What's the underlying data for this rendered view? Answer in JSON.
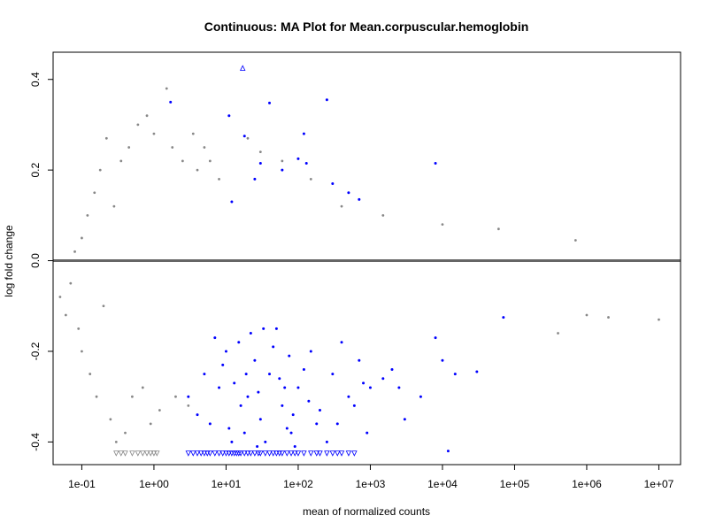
{
  "chart_data": {
    "type": "scatter",
    "title": "Continuous: MA Plot for Mean.corpuscular.hemoglobin",
    "xlabel": "mean of normalized counts",
    "ylabel": "log fold change",
    "x_scale": "log10",
    "xlim": [
      0.04,
      20000000
    ],
    "ylim": [
      -0.45,
      0.46
    ],
    "x_ticks": [
      {
        "value": 0.1,
        "label": "1e-01"
      },
      {
        "value": 1,
        "label": "1e+00"
      },
      {
        "value": 10,
        "label": "1e+01"
      },
      {
        "value": 100,
        "label": "1e+02"
      },
      {
        "value": 1000,
        "label": "1e+03"
      },
      {
        "value": 10000,
        "label": "1e+04"
      },
      {
        "value": 100000,
        "label": "1e+05"
      },
      {
        "value": 1000000,
        "label": "1e+06"
      },
      {
        "value": 10000000,
        "label": "1e+07"
      }
    ],
    "y_ticks": [
      {
        "value": -0.4,
        "label": "-0.4"
      },
      {
        "value": -0.2,
        "label": "-0.2"
      },
      {
        "value": 0.0,
        "label": "0.0"
      },
      {
        "value": 0.2,
        "label": "0.2"
      },
      {
        "value": 0.4,
        "label": "0.4"
      }
    ],
    "reference_line": {
      "y": 0,
      "color": "#666666"
    },
    "grid": false,
    "colors": {
      "not_significant": "#888888",
      "significant": "#0000ff"
    },
    "series": [
      {
        "points": [
          [
            0.05,
            -0.08
          ],
          [
            0.06,
            -0.12
          ],
          [
            0.07,
            -0.05
          ],
          [
            0.08,
            0.02
          ],
          [
            0.09,
            -0.15
          ],
          [
            0.1,
            0.05
          ],
          [
            0.1,
            -0.2
          ],
          [
            0.12,
            0.1
          ],
          [
            0.13,
            -0.25
          ],
          [
            0.15,
            0.15
          ],
          [
            0.16,
            -0.3
          ],
          [
            0.18,
            0.2
          ],
          [
            0.2,
            -0.1
          ],
          [
            0.22,
            0.27
          ],
          [
            0.25,
            -0.35
          ],
          [
            0.28,
            0.12
          ],
          [
            0.3,
            -0.4
          ],
          [
            0.35,
            0.22
          ],
          [
            0.4,
            -0.38
          ],
          [
            0.45,
            0.25
          ],
          [
            0.5,
            -0.3
          ],
          [
            0.6,
            0.3
          ],
          [
            0.7,
            -0.28
          ],
          [
            0.8,
            0.32
          ],
          [
            0.9,
            -0.36
          ],
          [
            1.0,
            0.28
          ],
          [
            1.2,
            -0.33
          ],
          [
            1.5,
            0.38
          ],
          [
            1.8,
            0.25
          ],
          [
            2.0,
            -0.3
          ],
          [
            2.5,
            0.22
          ],
          [
            3.0,
            -0.32
          ],
          [
            3.5,
            0.28
          ],
          [
            4.0,
            0.2
          ],
          [
            5.0,
            0.25
          ],
          [
            6.0,
            0.22
          ],
          [
            8.0,
            0.18
          ],
          [
            20,
            0.27
          ],
          [
            30,
            0.24
          ],
          [
            60,
            0.22
          ],
          [
            150,
            0.18
          ],
          [
            400,
            0.12
          ],
          [
            1500,
            0.1
          ],
          [
            10000,
            0.08
          ],
          [
            60000,
            0.07
          ],
          [
            700000,
            0.045
          ],
          [
            2000000,
            -0.125
          ],
          [
            1000000,
            -0.12
          ],
          [
            400000,
            -0.16
          ],
          [
            10000000,
            -0.13
          ]
        ]
      },
      {
        "name": "",
        "points": [
          [
            1.7,
            0.35
          ],
          [
            11,
            0.32
          ],
          [
            18,
            0.275
          ],
          [
            40,
            0.348
          ],
          [
            120,
            0.28
          ],
          [
            250,
            0.355
          ],
          [
            30,
            0.215
          ],
          [
            100,
            0.225
          ],
          [
            130,
            0.215
          ],
          [
            8000,
            0.215
          ],
          [
            12,
            0.13
          ],
          [
            25,
            0.18
          ],
          [
            60,
            0.2
          ],
          [
            300,
            0.17
          ],
          [
            500,
            0.15
          ],
          [
            700,
            0.135
          ],
          [
            3,
            -0.3
          ],
          [
            5,
            -0.25
          ],
          [
            8,
            -0.28
          ],
          [
            10,
            -0.2
          ],
          [
            15,
            -0.18
          ],
          [
            20,
            -0.3
          ],
          [
            25,
            -0.22
          ],
          [
            30,
            -0.35
          ],
          [
            40,
            -0.25
          ],
          [
            50,
            -0.15
          ],
          [
            60,
            -0.32
          ],
          [
            80,
            -0.38
          ],
          [
            100,
            -0.28
          ],
          [
            150,
            -0.2
          ],
          [
            200,
            -0.33
          ],
          [
            300,
            -0.25
          ],
          [
            400,
            -0.18
          ],
          [
            500,
            -0.3
          ],
          [
            700,
            -0.22
          ],
          [
            1000,
            -0.28
          ],
          [
            1500,
            -0.26
          ],
          [
            2000,
            -0.24
          ],
          [
            3000,
            -0.35
          ],
          [
            8000,
            -0.17
          ],
          [
            10000,
            -0.22
          ],
          [
            15000,
            -0.25
          ],
          [
            30000,
            -0.245
          ],
          [
            70000,
            -0.125
          ],
          [
            12000,
            -0.42
          ],
          [
            18,
            -0.38
          ],
          [
            12,
            -0.4
          ],
          [
            6,
            -0.36
          ],
          [
            35,
            -0.4
          ],
          [
            70,
            -0.37
          ],
          [
            90,
            -0.41
          ],
          [
            180,
            -0.36
          ],
          [
            7,
            -0.17
          ],
          [
            9,
            -0.23
          ],
          [
            13,
            -0.27
          ],
          [
            22,
            -0.16
          ],
          [
            45,
            -0.19
          ],
          [
            55,
            -0.26
          ],
          [
            120,
            -0.24
          ],
          [
            16,
            -0.32
          ],
          [
            28,
            -0.29
          ],
          [
            33,
            -0.15
          ],
          [
            75,
            -0.21
          ],
          [
            85,
            -0.34
          ],
          [
            250,
            -0.4
          ],
          [
            600,
            -0.32
          ],
          [
            900,
            -0.38
          ],
          [
            2500,
            -0.28
          ],
          [
            4,
            -0.34
          ],
          [
            11,
            -0.37
          ],
          [
            19,
            -0.25
          ],
          [
            27,
            -0.41
          ],
          [
            65,
            -0.28
          ],
          [
            140,
            -0.31
          ],
          [
            350,
            -0.36
          ],
          [
            800,
            -0.27
          ],
          [
            5000,
            -0.3
          ]
        ]
      }
    ],
    "clipped_points": [
      {
        "color": "#888888",
        "direction": "down",
        "y": -0.425,
        "x": [
          0.3,
          0.35,
          0.4,
          0.5,
          0.6,
          0.7,
          0.8,
          0.9,
          1.0,
          1.1
        ]
      },
      {
        "color": "#0000ff",
        "direction": "down",
        "y": -0.425,
        "x": [
          3,
          3.5,
          4,
          4.5,
          5,
          5.5,
          6,
          7,
          8,
          9,
          10,
          11,
          12,
          13,
          14,
          15,
          16,
          18,
          20,
          22,
          25,
          28,
          30,
          35,
          40,
          45,
          50,
          55,
          60,
          70,
          80,
          90,
          100,
          120,
          150,
          180,
          200,
          250,
          300,
          350,
          400,
          500,
          600
        ]
      },
      {
        "color": "#0000ff",
        "direction": "up",
        "y": 0.425,
        "x": [
          17
        ]
      }
    ]
  }
}
